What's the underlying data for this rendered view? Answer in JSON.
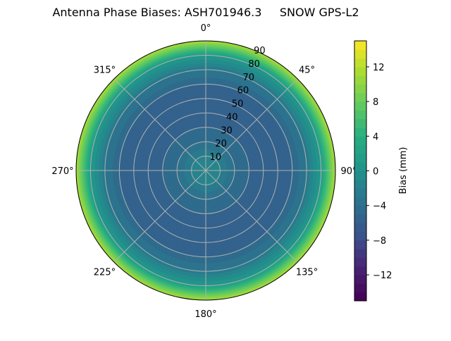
{
  "chart_data": {
    "type": "heatmap",
    "projection": "polar",
    "title": "Antenna Phase Biases: ASH701946.3     SNOW GPS-L2",
    "angular_ticks": [
      "0°",
      "45°",
      "90°",
      "135°",
      "180°",
      "225°",
      "270°",
      "315°"
    ],
    "radial_ticks": [
      "10",
      "20",
      "30",
      "40",
      "50",
      "60",
      "70",
      "80",
      "90"
    ],
    "radial_range": [
      0,
      90
    ],
    "theta_direction": "clockwise",
    "theta_zero": "top",
    "grid": true,
    "colormap": "viridis",
    "colorbar": {
      "label": "Bias (mm)",
      "range": [
        -15,
        15
      ],
      "level_step": 1,
      "ticks": [
        "12",
        "8",
        "4",
        "0",
        "−4",
        "−8",
        "−12"
      ],
      "tick_values": [
        12,
        8,
        4,
        0,
        -4,
        -8,
        -12
      ]
    },
    "radial_profile": {
      "zenith_deg": [
        0,
        10,
        20,
        30,
        40,
        50,
        60,
        70,
        80,
        90
      ],
      "bias_mm": [
        -1,
        -2,
        -4,
        -5,
        -5.5,
        -5.5,
        -5,
        -3,
        1,
        11
      ]
    }
  }
}
